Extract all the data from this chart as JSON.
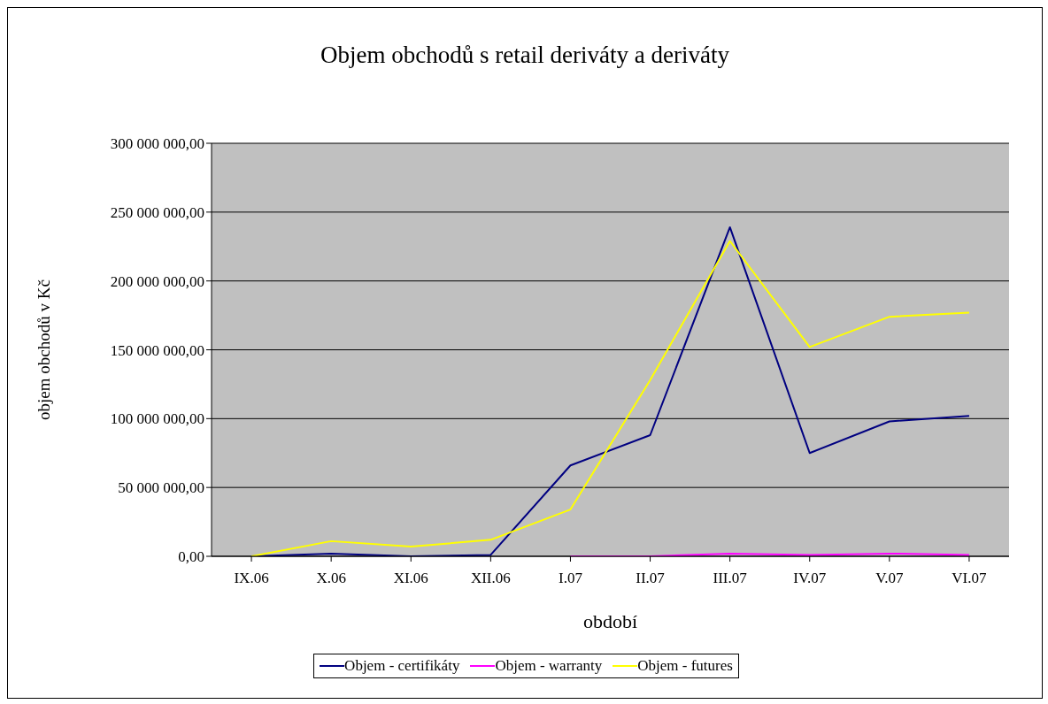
{
  "chart_data": {
    "type": "line",
    "title": "Objem obchodů s retail deriváty a deriváty",
    "xlabel": "období",
    "ylabel": "objem obchodů v Kč",
    "categories": [
      "IX.06",
      "X.06",
      "XI.06",
      "XII.06",
      "I.07",
      "II.07",
      "III.07",
      "IV.07",
      "V.07",
      "VI.07"
    ],
    "series": [
      {
        "name": "Objem - certifikáty",
        "color": "#000080",
        "values": [
          0,
          2000000,
          0,
          1000000,
          66000000,
          88000000,
          239000000,
          75000000,
          98000000,
          102000000
        ]
      },
      {
        "name": "Objem - warranty",
        "color": "#ff00ff",
        "values": [
          null,
          null,
          null,
          null,
          0,
          0,
          2000000,
          1000000,
          2000000,
          1000000
        ]
      },
      {
        "name": "Objem - futures",
        "color": "#ffff00",
        "values": [
          0,
          11000000,
          7000000,
          12000000,
          34000000,
          128000000,
          229000000,
          152000000,
          174000000,
          177000000
        ]
      }
    ],
    "ylim": [
      0,
      300000000
    ],
    "yticks": [
      {
        "value": 0,
        "label": "0,00"
      },
      {
        "value": 50000000,
        "label": "50 000 000,00"
      },
      {
        "value": 100000000,
        "label": "100 000 000,00"
      },
      {
        "value": 150000000,
        "label": "150 000 000,00"
      },
      {
        "value": 200000000,
        "label": "200 000 000,00"
      },
      {
        "value": 250000000,
        "label": "250 000 000,00"
      },
      {
        "value": 300000000,
        "label": "300 000 000,00"
      }
    ],
    "grid": "y",
    "legend": "bottom",
    "marker": "none",
    "line_style": "solid"
  }
}
